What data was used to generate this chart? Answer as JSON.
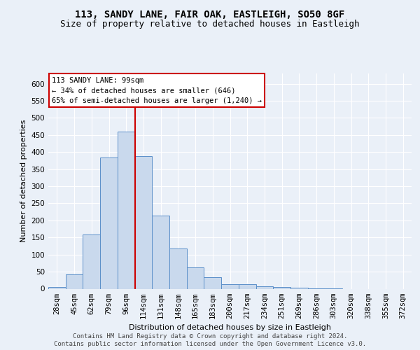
{
  "title_line1": "113, SANDY LANE, FAIR OAK, EASTLEIGH, SO50 8GF",
  "title_line2": "Size of property relative to detached houses in Eastleigh",
  "xlabel": "Distribution of detached houses by size in Eastleigh",
  "ylabel": "Number of detached properties",
  "categories": [
    "28sqm",
    "45sqm",
    "62sqm",
    "79sqm",
    "96sqm",
    "114sqm",
    "131sqm",
    "148sqm",
    "165sqm",
    "183sqm",
    "200sqm",
    "217sqm",
    "234sqm",
    "251sqm",
    "269sqm",
    "286sqm",
    "303sqm",
    "320sqm",
    "338sqm",
    "355sqm",
    "372sqm"
  ],
  "values": [
    5,
    42,
    158,
    385,
    460,
    388,
    215,
    118,
    62,
    33,
    14,
    14,
    8,
    5,
    3,
    1,
    1,
    0,
    0,
    0,
    0
  ],
  "bar_color": "#c9d9ed",
  "bar_edge_color": "#5b8fc9",
  "red_line_x": 4.5,
  "annotation_text": "113 SANDY LANE: 99sqm\n← 34% of detached houses are smaller (646)\n65% of semi-detached houses are larger (1,240) →",
  "annotation_box_color": "#ffffff",
  "annotation_box_edge": "#cc0000",
  "red_line_color": "#cc0000",
  "ylim": [
    0,
    630
  ],
  "yticks": [
    0,
    50,
    100,
    150,
    200,
    250,
    300,
    350,
    400,
    450,
    500,
    550,
    600
  ],
  "footer_line1": "Contains HM Land Registry data © Crown copyright and database right 2024.",
  "footer_line2": "Contains public sector information licensed under the Open Government Licence v3.0.",
  "bg_color": "#eaf0f8",
  "plot_bg_color": "#eaf0f8",
  "title_fontsize": 10,
  "subtitle_fontsize": 9,
  "label_fontsize": 8,
  "tick_fontsize": 7.5,
  "footer_fontsize": 6.5
}
